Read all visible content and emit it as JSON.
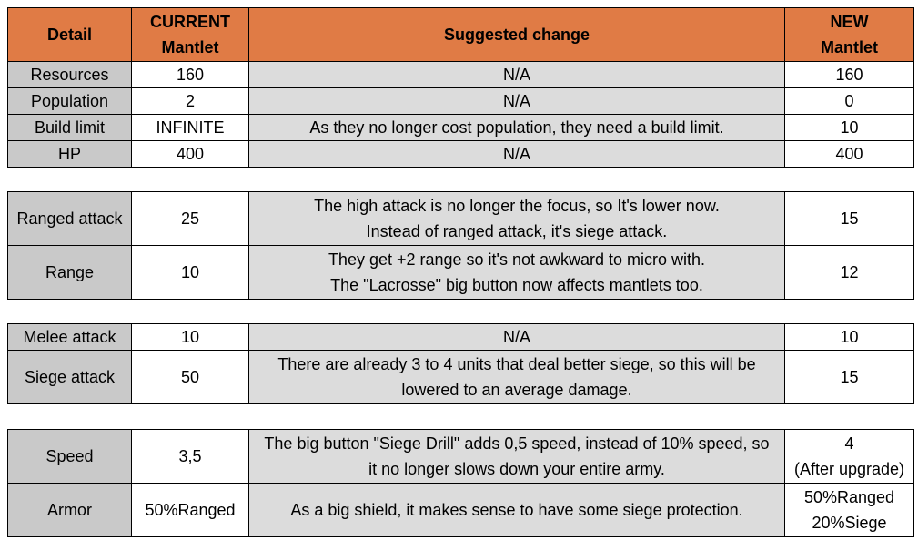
{
  "header": {
    "detail": "Detail",
    "current_line1": "CURRENT",
    "current_line2": "Mantlet",
    "suggested": "Suggested change",
    "new_line1": "NEW",
    "new_line2": "Mantlet"
  },
  "table1": [
    {
      "detail": "Resources",
      "current": "160",
      "suggested": "N/A",
      "new": "160"
    },
    {
      "detail": "Population",
      "current": "2",
      "suggested": "N/A",
      "new": "0"
    },
    {
      "detail": "Build limit",
      "current": "INFINITE",
      "suggested": "As they no longer cost population, they need a build limit.",
      "new": "10"
    },
    {
      "detail": "HP",
      "current": "400",
      "suggested": "N/A",
      "new": "400"
    }
  ],
  "table2": [
    {
      "detail": "Ranged attack",
      "current": "25",
      "suggested_1": "The high attack is no longer the focus, so It's lower now.",
      "suggested_2": "Instead of ranged attack, it's siege attack.",
      "new": "15"
    },
    {
      "detail": "Range",
      "current": "10",
      "suggested_1": "They get +2 range so it's not awkward to micro with.",
      "suggested_2": "The \"Lacrosse\" big button now affects mantlets too.",
      "new": "12"
    }
  ],
  "table3": [
    {
      "detail": "Melee attack",
      "current": "10",
      "suggested": "N/A",
      "new": "10"
    },
    {
      "detail": "Siege attack",
      "current": "50",
      "suggested_1": "There are already 3 to 4 units that deal better siege, so this will be",
      "suggested_2": "lowered to an average damage.",
      "new": "15"
    }
  ],
  "table4": [
    {
      "detail": "Speed",
      "current": "3,5",
      "suggested_1": "The big button \"Siege Drill\" adds 0,5 speed, instead of 10% speed, so",
      "suggested_2": "it no longer slows down your entire army.",
      "new_1": "4",
      "new_2": "(After upgrade)"
    },
    {
      "detail": "Armor",
      "current": "50%Ranged",
      "suggested": "As a big shield, it makes sense to have some siege protection.",
      "new_1": "50%Ranged",
      "new_2": "20%Siege"
    }
  ],
  "colors": {
    "header_bg": "#e07b45",
    "detail_bg": "#c9c9c9",
    "suggested_bg": "#dcdcdc"
  }
}
